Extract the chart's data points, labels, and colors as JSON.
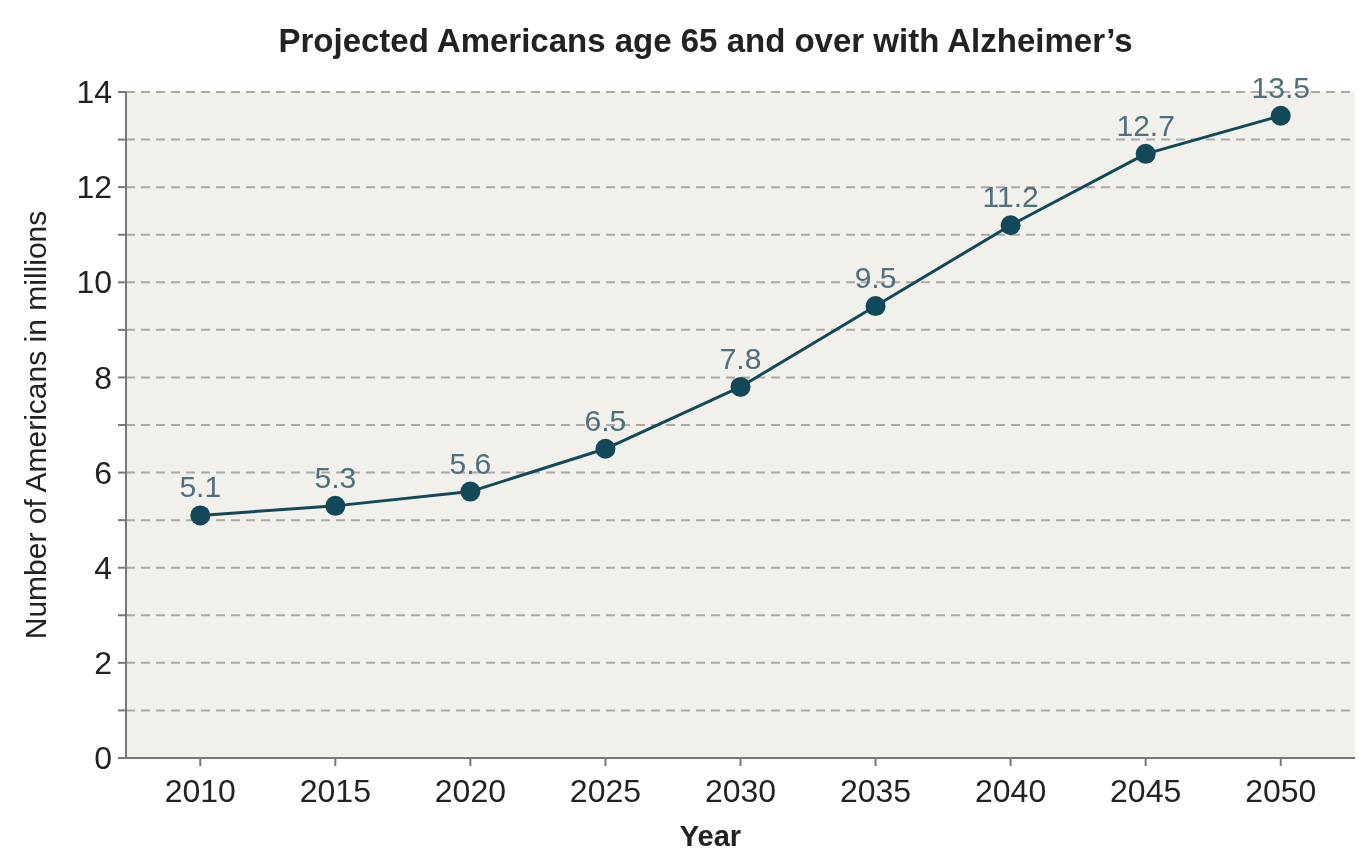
{
  "chart_data": {
    "type": "line",
    "title": "Projected Americans age 65 and over with Alzheimer’s",
    "xlabel": "Year",
    "ylabel": "Number of Americans in millions",
    "categories": [
      "2010",
      "2015",
      "2020",
      "2025",
      "2030",
      "2035",
      "2040",
      "2045",
      "2050"
    ],
    "series": [
      {
        "color": "#12495a",
        "values": [
          5.1,
          5.3,
          5.6,
          6.5,
          7.8,
          9.5,
          11.2,
          12.7,
          13.5
        ]
      }
    ],
    "ylim": [
      0,
      14
    ],
    "yticks": [
      0,
      {
        "value": 1,
        "label": null
      },
      2,
      {
        "value": 3,
        "label": null
      },
      4,
      {
        "value": 5,
        "label": null
      },
      6,
      {
        "value": 7,
        "label": null
      },
      8,
      {
        "value": 9,
        "label": null
      },
      10,
      {
        "value": 11,
        "label": null
      },
      12,
      {
        "value": 13,
        "label": null
      },
      14
    ],
    "grid": "y",
    "marker": "circle",
    "line_style": "solid",
    "data_labels": true
  }
}
